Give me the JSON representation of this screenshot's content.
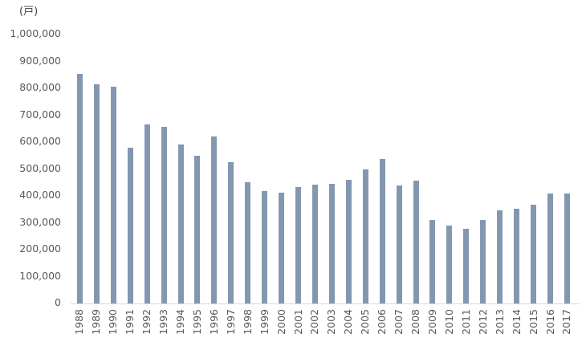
{
  "chart_data": {
    "type": "bar",
    "title": "",
    "unit_label": "(戸)",
    "xlabel": "",
    "ylabel": "",
    "categories": [
      "1988",
      "1989",
      "1990",
      "1991",
      "1992",
      "1993",
      "1994",
      "1995",
      "1996",
      "1997",
      "1998",
      "1999",
      "2000",
      "2001",
      "2002",
      "2003",
      "2004",
      "2005",
      "2006",
      "2007",
      "2008",
      "2009",
      "2010",
      "2011",
      "2012",
      "2013",
      "2014",
      "2015",
      "2016",
      "2017"
    ],
    "values": [
      855000,
      815000,
      805000,
      578000,
      665000,
      658000,
      592000,
      548000,
      620000,
      525000,
      450000,
      417000,
      413000,
      432000,
      441000,
      444000,
      459000,
      499000,
      538000,
      438000,
      457000,
      311000,
      289000,
      277000,
      310000,
      346000,
      352000,
      368000,
      408000,
      408000
    ],
    "ylim": [
      0,
      1000000
    ],
    "ytick_step": 100000,
    "ytick_labels": [
      "0",
      "100,000",
      "200,000",
      "300,000",
      "400,000",
      "500,000",
      "600,000",
      "700,000",
      "800,000",
      "900,000",
      "1,000,000"
    ],
    "grid": false,
    "legend": null,
    "x_labels_rotated_degrees": 90,
    "colors": {
      "bar": "#8497B0",
      "axis_line": "#D9D9D9",
      "tick_label": "#595959",
      "unit_label": "#404040",
      "background": "#FFFFFF"
    }
  }
}
